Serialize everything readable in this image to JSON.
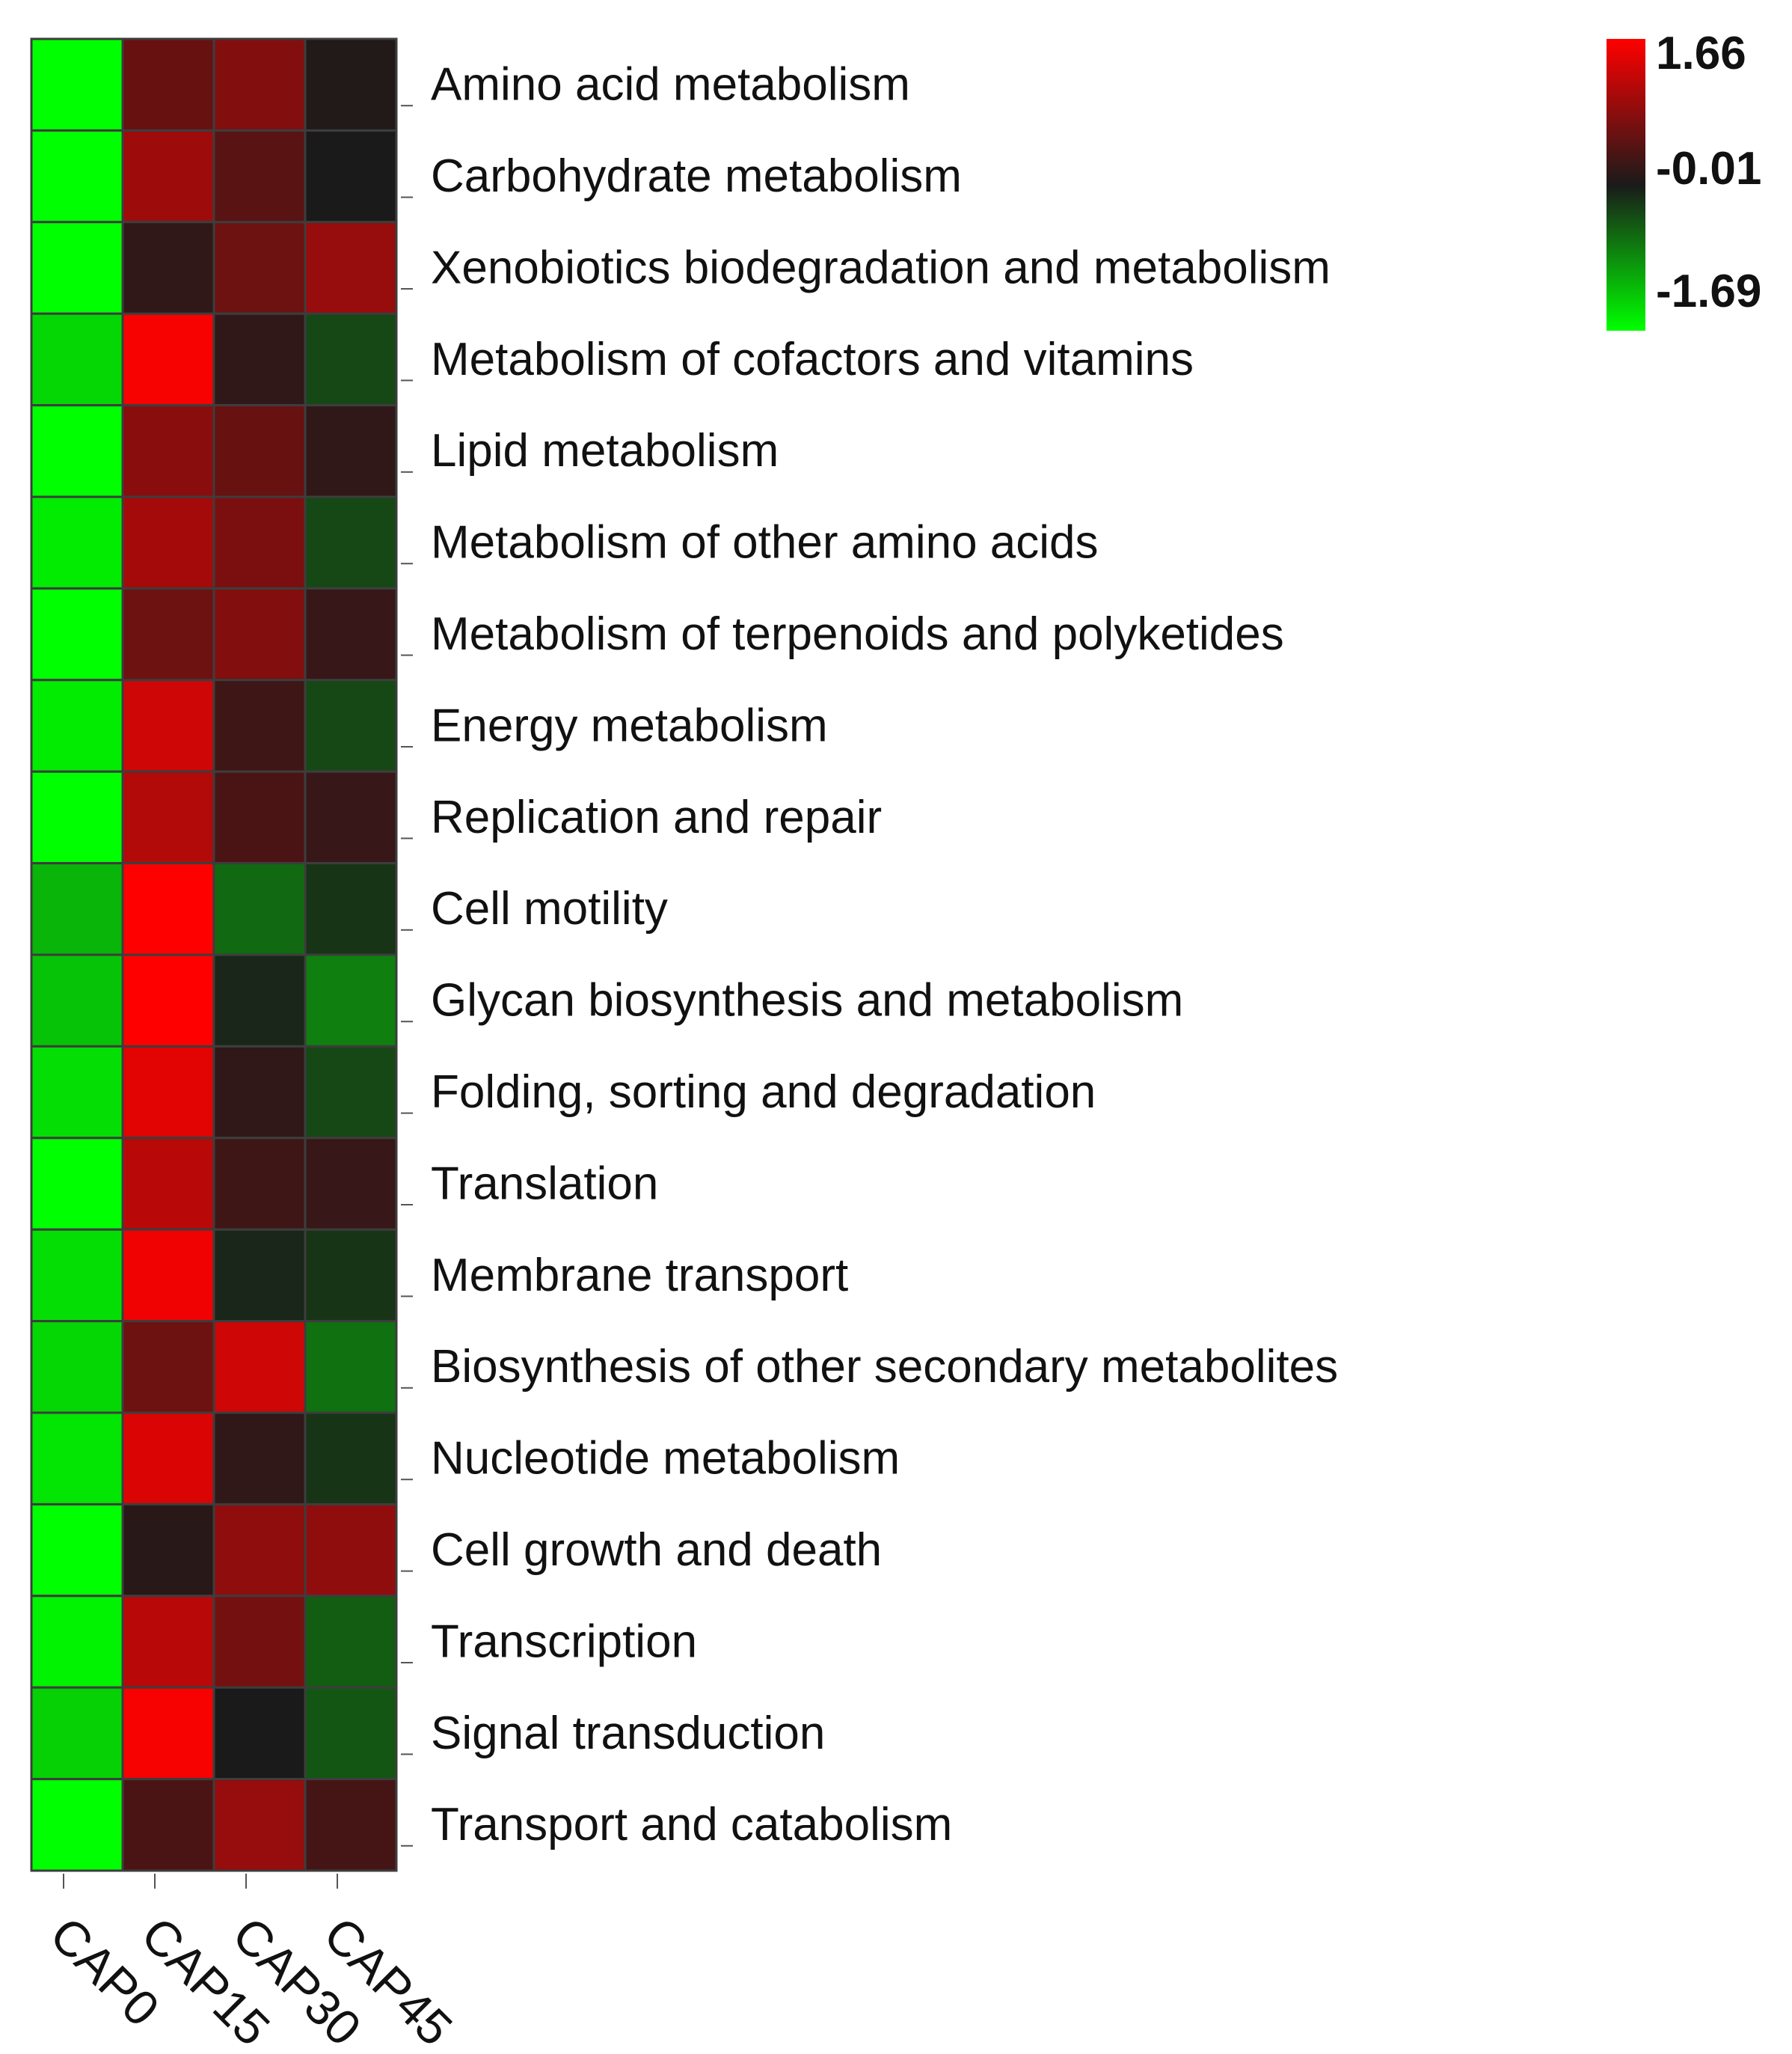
{
  "chart_data": {
    "type": "heatmap",
    "title": "",
    "xlabel": "",
    "ylabel": "",
    "columns": [
      "CAP0",
      "CAP15",
      "CAP30",
      "CAP45"
    ],
    "rows": [
      "Amino acid metabolism",
      "Carbohydrate metabolism",
      "Xenobiotics biodegradation and metabolism",
      "Metabolism of cofactors and vitamins",
      "Lipid metabolism",
      "Metabolism of other amino acids",
      "Metabolism of terpenoids and polyketides",
      "Energy metabolism",
      "Replication and repair",
      "Cell motility",
      "Glycan biosynthesis and metabolism",
      "Folding, sorting and degradation",
      "Translation",
      "Membrane transport",
      "Biosynthesis of other secondary metabolites",
      "Nucleotide metabolism",
      "Cell growth and death",
      "Transcription",
      "Signal transduction",
      "Transport and catabolism"
    ],
    "values": [
      [
        -1.69,
        0.55,
        0.75,
        0.05
      ],
      [
        -1.69,
        0.95,
        0.45,
        0.0
      ],
      [
        -1.69,
        0.15,
        0.6,
        0.9
      ],
      [
        -1.4,
        1.6,
        0.15,
        -0.35
      ],
      [
        -1.69,
        0.8,
        0.55,
        0.15
      ],
      [
        -1.55,
        1.0,
        0.7,
        -0.35
      ],
      [
        -1.69,
        0.6,
        0.75,
        0.2
      ],
      [
        -1.55,
        1.3,
        0.25,
        -0.35
      ],
      [
        -1.69,
        1.1,
        0.35,
        0.2
      ],
      [
        -1.15,
        1.66,
        -0.6,
        -0.2
      ],
      [
        -1.25,
        1.66,
        -0.1,
        -0.75
      ],
      [
        -1.45,
        1.45,
        0.15,
        -0.35
      ],
      [
        -1.69,
        1.15,
        0.25,
        0.2
      ],
      [
        -1.45,
        1.55,
        -0.1,
        -0.2
      ],
      [
        -1.4,
        0.6,
        1.3,
        -0.65
      ],
      [
        -1.5,
        1.4,
        0.15,
        -0.2
      ],
      [
        -1.69,
        0.1,
        0.85,
        0.85
      ],
      [
        -1.6,
        1.15,
        0.65,
        -0.5
      ],
      [
        -1.35,
        1.6,
        0.0,
        -0.45
      ],
      [
        -1.69,
        0.35,
        0.9,
        0.3
      ]
    ],
    "color_scale": {
      "max": 1.66,
      "mid": -0.01,
      "min": -1.69,
      "max_label": "1.66",
      "mid_label": "-0.01",
      "min_label": "-1.69",
      "max_color": "#ff0000",
      "mid_color": "#1a1a1a",
      "min_color": "#00ff00"
    },
    "legend_placement": "top-right",
    "grid": true
  }
}
